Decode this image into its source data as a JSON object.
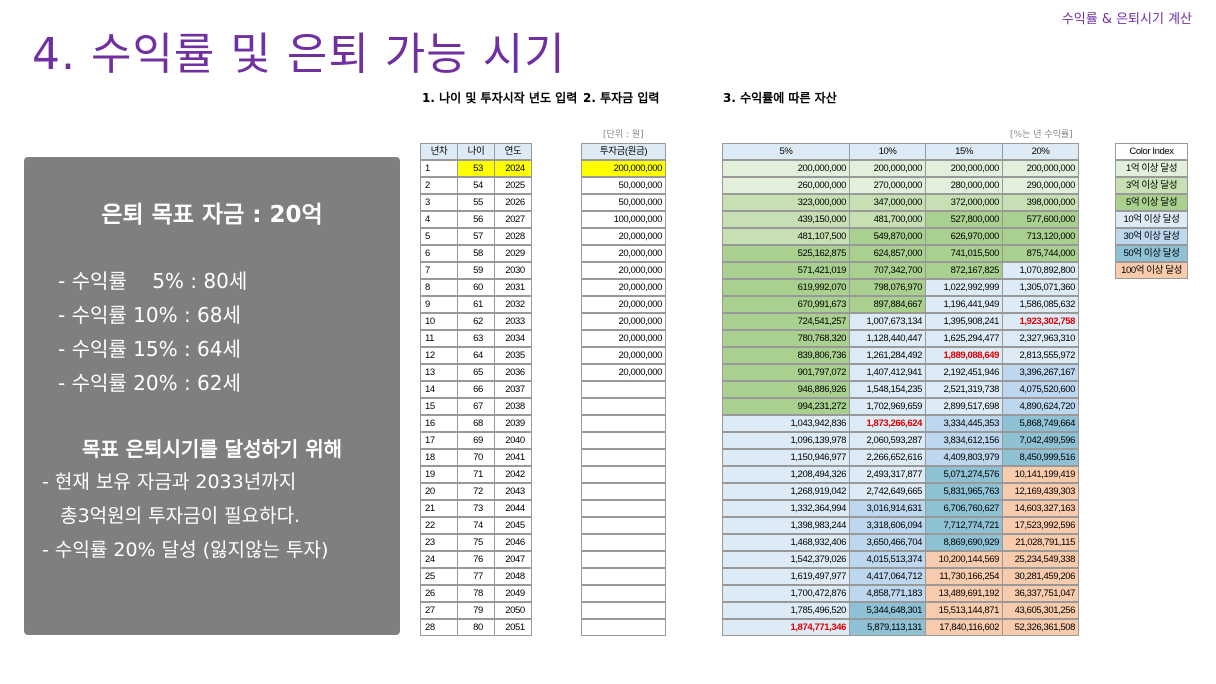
{
  "header": {
    "title": "4. 수익률 및 은퇴 가능 시기",
    "tag": "수익률 & 은퇴시기 계산"
  },
  "summary": {
    "heading": "은퇴 목표 자금 : 20억",
    "rates": [
      "- 수익률    5% : 80세",
      "- 수익률 10% : 68세",
      "- 수익률 15% : 64세",
      "- 수익률 20% : 62세"
    ],
    "plan_heading": "목표 은퇴시기를 달성하기 위해",
    "plan": [
      "- 현재 보유 자금과 2033년까지",
      "   총3억원의 투자금이 필요하다.",
      "- 수익률 20% 달성 (잃지않는 투자)"
    ]
  },
  "sheet": {
    "section1": "1. 나이 및 투자시작 년도 입력",
    "section2": "2. 투자금 입력",
    "section3": "3. 수익률에 따른 자산",
    "unit_note": "[단위 : 원]",
    "rate_note": "[%는 년 수익률]",
    "age_table": {
      "columns": [
        "년차",
        "나이",
        "연도"
      ],
      "rows": [
        [
          1,
          53,
          2024
        ],
        [
          2,
          54,
          2025
        ],
        [
          3,
          55,
          2026
        ],
        [
          4,
          56,
          2027
        ],
        [
          5,
          57,
          2028
        ],
        [
          6,
          58,
          2029
        ],
        [
          7,
          59,
          2030
        ],
        [
          8,
          60,
          2031
        ],
        [
          9,
          61,
          2032
        ],
        [
          10,
          62,
          2033
        ],
        [
          11,
          63,
          2034
        ],
        [
          12,
          64,
          2035
        ],
        [
          13,
          65,
          2036
        ],
        [
          14,
          66,
          2037
        ],
        [
          15,
          67,
          2038
        ],
        [
          16,
          68,
          2039
        ],
        [
          17,
          69,
          2040
        ],
        [
          18,
          70,
          2041
        ],
        [
          19,
          71,
          2042
        ],
        [
          20,
          72,
          2043
        ],
        [
          21,
          73,
          2044
        ],
        [
          22,
          74,
          2045
        ],
        [
          23,
          75,
          2046
        ],
        [
          24,
          76,
          2047
        ],
        [
          25,
          77,
          2048
        ],
        [
          26,
          78,
          2049
        ],
        [
          27,
          79,
          2050
        ],
        [
          28,
          80,
          2051
        ]
      ]
    },
    "investment": {
      "column": "투자금(원금)",
      "rows": [
        "200,000,000",
        "50,000,000",
        "50,000,000",
        "100,000,000",
        "20,000,000",
        "20,000,000",
        "20,000,000",
        "20,000,000",
        "20,000,000",
        "20,000,000",
        "20,000,000",
        "20,000,000",
        "20,000,000",
        null,
        null,
        null,
        null,
        null,
        null,
        null,
        null,
        null,
        null,
        null,
        null,
        null,
        null,
        null
      ]
    },
    "assets": {
      "columns": [
        "5%",
        "10%",
        "15%",
        "20%"
      ],
      "rows": [
        [
          "200,000,000",
          "200,000,000",
          "200,000,000",
          "200,000,000"
        ],
        [
          "260,000,000",
          "270,000,000",
          "280,000,000",
          "290,000,000"
        ],
        [
          "323,000,000",
          "347,000,000",
          "372,000,000",
          "398,000,000"
        ],
        [
          "439,150,000",
          "481,700,000",
          "527,800,000",
          "577,600,000"
        ],
        [
          "481,107,500",
          "549,870,000",
          "626,970,000",
          "713,120,000"
        ],
        [
          "525,162,875",
          "624,857,000",
          "741,015,500",
          "875,744,000"
        ],
        [
          "571,421,019",
          "707,342,700",
          "872,167,825",
          "1,070,892,800"
        ],
        [
          "619,992,070",
          "798,076,970",
          "1,022,992,999",
          "1,305,071,360"
        ],
        [
          "670,991,673",
          "897,884,667",
          "1,196,441,949",
          "1,586,085,632"
        ],
        [
          "724,541,257",
          "1,007,673,134",
          "1,395,908,241",
          "1,923,302,758"
        ],
        [
          "780,768,320",
          "1,128,440,447",
          "1,625,294,477",
          "2,327,963,310"
        ],
        [
          "839,806,736",
          "1,261,284,492",
          "1,889,088,649",
          "2,813,555,972"
        ],
        [
          "901,797,072",
          "1,407,412,941",
          "2,192,451,946",
          "3,396,267,167"
        ],
        [
          "946,886,926",
          "1,548,154,235",
          "2,521,319,738",
          "4,075,520,600"
        ],
        [
          "994,231,272",
          "1,702,969,659",
          "2,899,517,698",
          "4,890,624,720"
        ],
        [
          "1,043,942,836",
          "1,873,266,624",
          "3,334,445,353",
          "5,868,749,664"
        ],
        [
          "1,096,139,978",
          "2,060,593,287",
          "3,834,612,156",
          "7,042,499,596"
        ],
        [
          "1,150,946,977",
          "2,266,652,616",
          "4,409,803,979",
          "8,450,999,516"
        ],
        [
          "1,208,494,326",
          "2,493,317,877",
          "5,071,274,576",
          "10,141,199,419"
        ],
        [
          "1,268,919,042",
          "2,742,649,665",
          "5,831,965,763",
          "12,169,439,303"
        ],
        [
          "1,332,364,994",
          "3,016,914,631",
          "6,706,760,627",
          "14,603,327,163"
        ],
        [
          "1,398,983,244",
          "3,318,606,094",
          "7,712,774,721",
          "17,523,992,596"
        ],
        [
          "1,468,932,406",
          "3,650,466,704",
          "8,869,690,929",
          "21,028,791,115"
        ],
        [
          "1,542,379,026",
          "4,015,513,374",
          "10,200,144,569",
          "25,234,549,338"
        ],
        [
          "1,619,497,977",
          "4,417,064,712",
          "11,730,166,254",
          "30,281,459,206"
        ],
        [
          "1,700,472,876",
          "4,858,771,183",
          "13,489,691,192",
          "36,337,751,047"
        ],
        [
          "1,785,496,520",
          "5,344,648,301",
          "15,513,144,871",
          "43,605,301,256"
        ],
        [
          "1,874,771,346",
          "5,879,113,131",
          "17,840,116,602",
          "52,326,361,508"
        ]
      ],
      "highlighted_cells": [
        [
          9,
          3
        ],
        [
          11,
          2
        ],
        [
          15,
          1
        ],
        [
          27,
          0
        ]
      ],
      "highlight_color": "#e00000"
    },
    "color_index_title": "Color Index",
    "color_index": [
      {
        "label": "1억 이상 달성",
        "color": "#e2efda"
      },
      {
        "label": "3억 이상 달성",
        "color": "#c6e0b4"
      },
      {
        "label": "5억 이상 달성",
        "color": "#a9d08e"
      },
      {
        "label": "10억 이상 달성",
        "color": "#ddebf7"
      },
      {
        "label": "30억 이상 달성",
        "color": "#bdd7ee"
      },
      {
        "label": "50억 이상 달성",
        "color": "#8fc1d4"
      },
      {
        "label": "100억 이상 달성",
        "color": "#f8cbad"
      }
    ]
  }
}
